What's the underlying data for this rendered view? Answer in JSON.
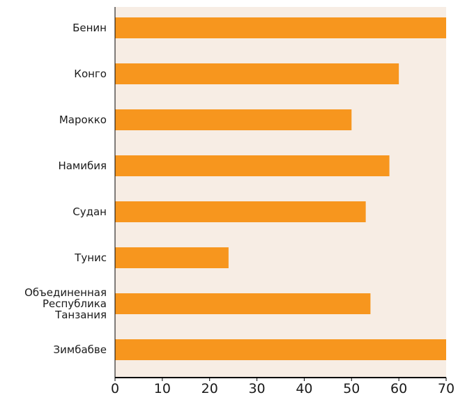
{
  "chart_data": {
    "type": "bar",
    "orientation": "horizontal",
    "title": "",
    "xlabel": "",
    "ylabel": "",
    "categories": [
      "Бенин",
      "Конго",
      "Марокко",
      "Намибия",
      "Судан",
      "Тунис",
      "Объединенная Республика Танзания",
      "Зимбабве"
    ],
    "category_lines": [
      [
        "Бенин"
      ],
      [
        "Конго"
      ],
      [
        "Марокко"
      ],
      [
        "Намибия"
      ],
      [
        "Судан"
      ],
      [
        "Тунис"
      ],
      [
        "Объединенная",
        "Республика",
        "Танзания"
      ],
      [
        "Зимбабве"
      ]
    ],
    "values": [
      70,
      60,
      50,
      58,
      53,
      24,
      54,
      70
    ],
    "xlim": [
      0,
      70
    ],
    "xticks": [
      "0",
      "10",
      "20",
      "30",
      "40",
      "50",
      "60",
      "70"
    ],
    "grid": false,
    "colors": {
      "bar": "#f7961e",
      "plot_background": "#f7ede4",
      "axis": "#000000"
    }
  }
}
